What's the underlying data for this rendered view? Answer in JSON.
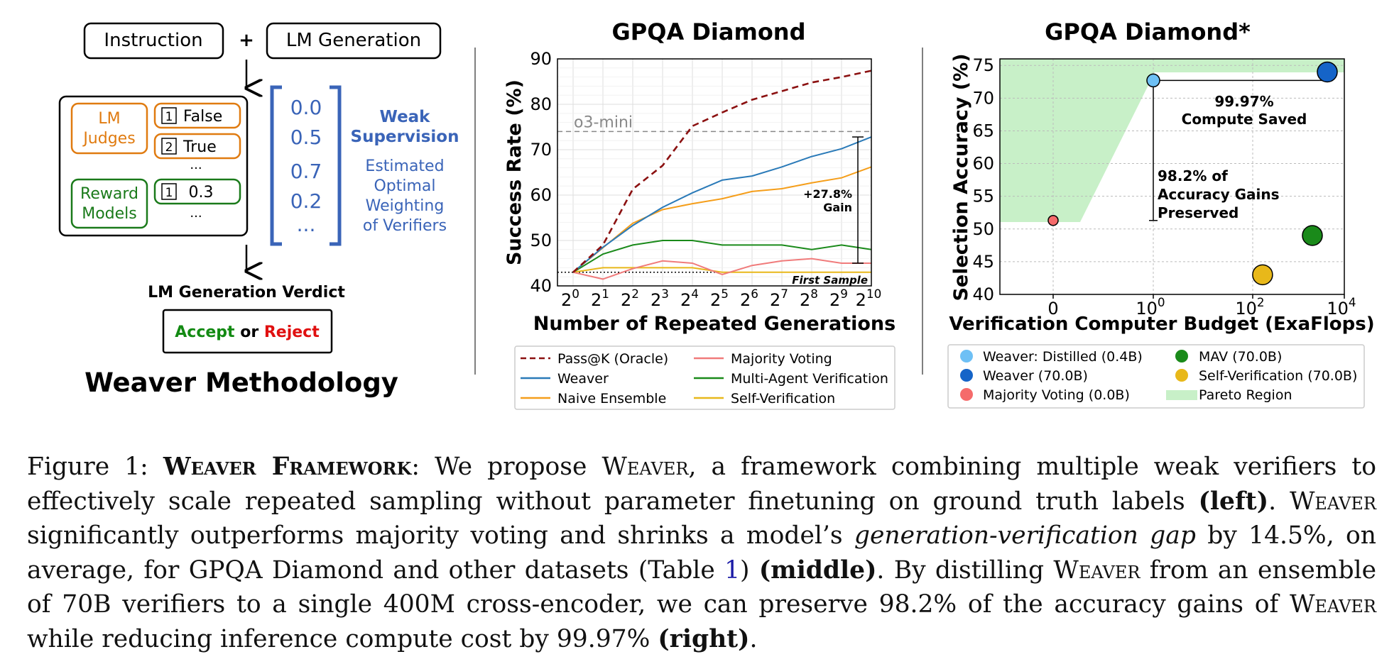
{
  "figure": {
    "left": {
      "instruction_label": "Instruction",
      "plus": "+",
      "generation_label": "LM Generation",
      "lm_judges_label": [
        "LM",
        "Judges"
      ],
      "reward_models_label": [
        "Reward",
        "Models"
      ],
      "judge_outputs": [
        {
          "num": "1",
          "text": "False"
        },
        {
          "num": "2",
          "text": "True"
        }
      ],
      "reward_outputs": [
        {
          "num": "1",
          "text": "0.3"
        }
      ],
      "ellipsis": "...",
      "weights": [
        "0.0",
        "0.5",
        "0.7",
        "0.2",
        "..."
      ],
      "weak_supervision": [
        "Weak",
        "Supervision"
      ],
      "estimated_weighting": [
        "Estimated",
        "Optimal",
        "Weighting",
        "of Verifiers"
      ],
      "verdict_title": "LM Generation Verdict",
      "verdict_accept": "Accept",
      "verdict_or": "or",
      "verdict_reject": "Reject",
      "methodology_title": "Weaver Methodology"
    },
    "colors": {
      "judges": "#e07b10",
      "reward": "#1a7a1a",
      "weights": "#3a64b8",
      "accept": "#138a13",
      "reject": "#e01010"
    }
  },
  "chart_data": [
    {
      "type": "line",
      "title": "GPQA Diamond",
      "xlabel": "Number of Repeated Generations",
      "ylabel": "Success Rate (%)",
      "x": [
        0,
        1,
        2,
        3,
        4,
        5,
        6,
        7,
        8,
        9,
        10
      ],
      "x_tick_base": "2",
      "ylim": [
        40,
        90
      ],
      "yticks": [
        40,
        50,
        60,
        70,
        80,
        90
      ],
      "grid": true,
      "series": [
        {
          "name": "Pass@K (Oracle)",
          "color": "#8b1010",
          "dash": "9,6",
          "values": [
            43,
            49,
            61.3,
            66.5,
            75.2,
            78.2,
            81,
            82.9,
            84.8,
            86,
            87.4
          ]
        },
        {
          "name": "Weaver",
          "color": "#2a7ab8",
          "values": [
            43,
            48.5,
            53.3,
            57.3,
            60.5,
            63.3,
            64.2,
            66.2,
            68.5,
            70.2,
            72.8
          ]
        },
        {
          "name": "Naive Ensemble",
          "color": "#f59e1a",
          "values": [
            43,
            48.4,
            53.8,
            56.8,
            58.1,
            59.2,
            60.8,
            61.4,
            62.7,
            63.8,
            66.2
          ]
        },
        {
          "name": "Majority Voting",
          "color": "#f07b7b",
          "values": [
            43,
            41.5,
            43.8,
            45.5,
            45,
            42.5,
            44.5,
            45.5,
            46,
            45,
            45
          ]
        },
        {
          "name": "Multi-Agent Verification",
          "color": "#1a8a1a",
          "values": [
            43,
            47,
            49,
            50,
            50,
            49,
            49,
            49,
            48,
            49,
            48
          ]
        },
        {
          "name": "Self-Verification",
          "color": "#e8b81a",
          "values": [
            43,
            44,
            44,
            44,
            44,
            43,
            43,
            43,
            43,
            43,
            43
          ]
        }
      ],
      "reference_lines": [
        {
          "label": "o3-mini",
          "y": 74
        },
        {
          "label": "First Sample",
          "y": 43
        }
      ],
      "annotation": {
        "label": [
          "+27.8%",
          "Gain"
        ],
        "from": 45,
        "to": 72.8
      },
      "legend_position": "below"
    },
    {
      "type": "scatter",
      "title": "GPQA Diamond*",
      "xlabel": "Verification Computer Budget (ExaFlops)",
      "ylabel": "Selection Accuracy (%)",
      "xscale": "symlog",
      "xticks": [
        "0",
        "10^0",
        "10^2",
        "10^4"
      ],
      "ylim": [
        40,
        76
      ],
      "yticks": [
        40,
        45,
        50,
        55,
        60,
        65,
        70,
        75
      ],
      "grid": true,
      "points": [
        {
          "name": "Weaver: Distilled (0.4B)",
          "color": "#6ec0f5",
          "x": 1,
          "y": 72.7
        },
        {
          "name": "Weaver (70.0B)",
          "color": "#1564c8",
          "x": 3162,
          "y": 74
        },
        {
          "name": "Majority Voting (0.0B)",
          "color": "#f56b6b",
          "x": 0,
          "y": 51.3
        },
        {
          "name": "MAV (70.0B)",
          "color": "#1a8a1a",
          "x": 1585,
          "y": 49
        },
        {
          "name": "Self-Verification (70.0B)",
          "color": "#e8b81a",
          "x": 158,
          "y": 43
        }
      ],
      "pareto_label": "Pareto Region",
      "pareto_color": "#c8f0c8",
      "annotations": [
        {
          "label": [
            "99.97%",
            "Compute Saved"
          ]
        },
        {
          "label": [
            "98.2% of",
            "Accuracy Gains",
            "Preserved"
          ]
        }
      ],
      "legend_position": "below"
    }
  ],
  "caption": {
    "fig_label": "Figure 1:",
    "title": "Weaver Framework",
    "p1": ": We propose ",
    "weaver": "Weaver",
    "p2": ", a framework combining multiple weak verifiers to effectively scale repeated sampling without parameter finetuning on ground truth labels ",
    "left": "(left)",
    "p3": ". ",
    "p4": " significantly outperforms majority voting and shrinks a model’s ",
    "gap": "generation-verification gap",
    "p5": " by 14.5%, on average, for GPQA Diamond and other datasets (Table ",
    "table_ref": "1",
    "p6": ") ",
    "middle": "(middle)",
    "p7": ". By distilling ",
    "p8": " from an ensemble of 70B verifiers to a single 400M cross-encoder, we can preserve 98.2% of the accuracy gains of ",
    "p9": " while reducing inference compute cost by 99.97% ",
    "right": "(right)",
    "p10": "."
  }
}
